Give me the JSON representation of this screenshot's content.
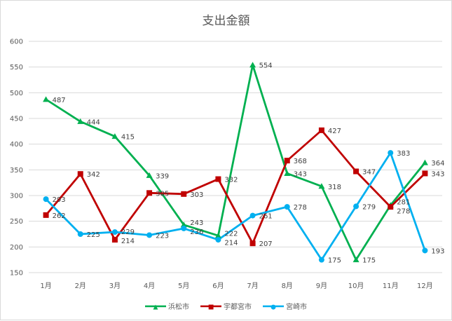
{
  "chart_data": {
    "type": "line",
    "title": "支出金額",
    "categories": [
      "1月",
      "2月",
      "3月",
      "4月",
      "5月",
      "6月",
      "7月",
      "8月",
      "9月",
      "10月",
      "11月",
      "12月"
    ],
    "ylim": [
      150,
      600
    ],
    "yticks": [
      150,
      200,
      250,
      300,
      350,
      400,
      450,
      500,
      550,
      600
    ],
    "grid": true,
    "legend_position": "bottom",
    "series": [
      {
        "name": "浜松市",
        "color": "#00b050",
        "marker": "triangle",
        "values": [
          487,
          444,
          415,
          339,
          243,
          222,
          554,
          343,
          318,
          175,
          281,
          364
        ]
      },
      {
        "name": "宇都宮市",
        "color": "#c00000",
        "marker": "square",
        "values": [
          262,
          342,
          214,
          305,
          303,
          332,
          207,
          368,
          427,
          347,
          278,
          343
        ]
      },
      {
        "name": "宮崎市",
        "color": "#00b0f0",
        "marker": "circle",
        "values": [
          293,
          225,
          229,
          223,
          236,
          214,
          261,
          278,
          175,
          279,
          383,
          193
        ]
      }
    ]
  }
}
